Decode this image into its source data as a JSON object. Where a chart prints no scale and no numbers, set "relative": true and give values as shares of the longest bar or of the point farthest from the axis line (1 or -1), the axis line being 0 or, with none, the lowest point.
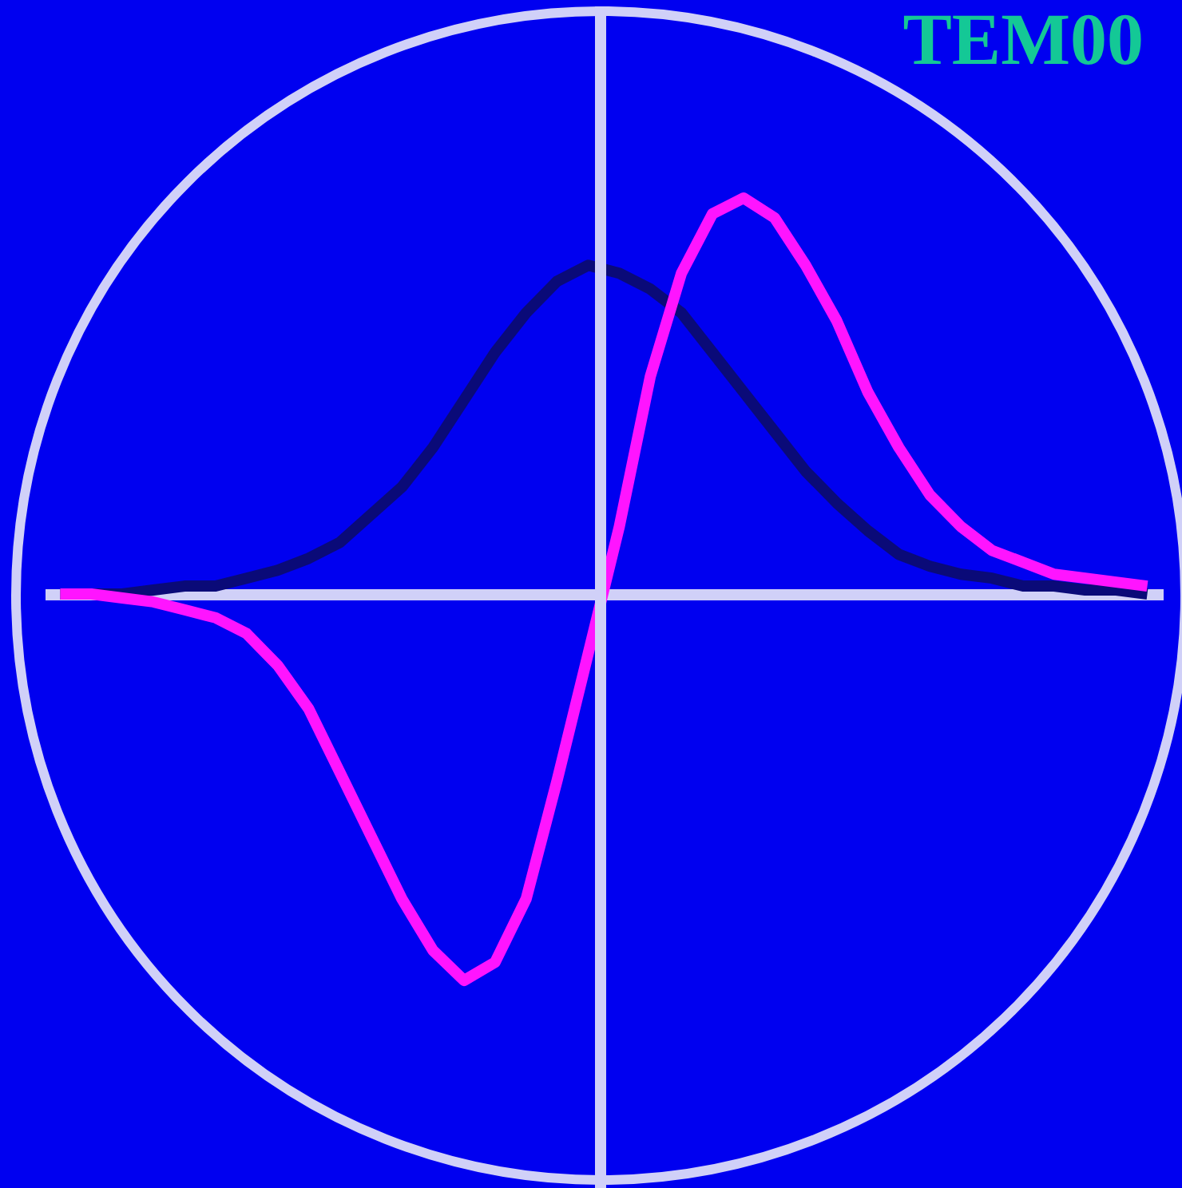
{
  "chart_data": {
    "type": "line",
    "title": "TEM00",
    "relative": true,
    "tick_labels": false,
    "categories": [
      null,
      null,
      null,
      null,
      null,
      null,
      null,
      null,
      null,
      null,
      null,
      null,
      null,
      null,
      null,
      null,
      null,
      null,
      null,
      null,
      null,
      null,
      null,
      null,
      null,
      null,
      null,
      null,
      null,
      null,
      null,
      null,
      null,
      null,
      null,
      null
    ],
    "series": [
      {
        "color": "#0a0a78",
        "values": [
          0,
          0,
          0,
          0.01,
          0.02,
          0.02,
          0.04,
          0.06,
          0.09,
          0.13,
          0.2,
          0.27,
          0.37,
          0.49,
          0.61,
          0.71,
          0.79,
          0.83,
          0.81,
          0.77,
          0.71,
          0.61,
          0.51,
          0.41,
          0.31,
          0.23,
          0.16,
          0.1,
          0.07,
          0.05,
          0.04,
          0.02,
          0.02,
          0.01,
          0.01,
          0
        ]
      },
      {
        "color": "#ff14ff",
        "values": [
          0,
          0,
          -0.01,
          -0.02,
          -0.04,
          -0.06,
          -0.1,
          -0.18,
          -0.29,
          -0.45,
          -0.61,
          -0.77,
          -0.9,
          -0.976,
          -0.93,
          -0.77,
          -0.47,
          -0.15,
          0.17,
          0.55,
          0.81,
          0.96,
          1,
          0.95,
          0.83,
          0.69,
          0.51,
          0.37,
          0.25,
          0.17,
          0.11,
          0.08,
          0.05,
          0.04,
          0.03,
          0.02
        ]
      }
    ]
  }
}
